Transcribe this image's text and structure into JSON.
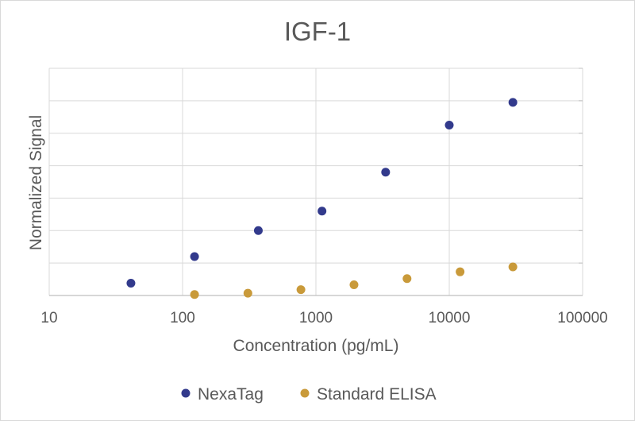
{
  "chart_data": {
    "type": "scatter",
    "title": "IGF-1",
    "xlabel": "Concentration (pg/mL)",
    "ylabel": "Normalized Signal",
    "x_scale": "log",
    "xlim": [
      10,
      100000
    ],
    "ylim": [
      0,
      7
    ],
    "x_tick_labels": [
      "10",
      "100",
      "1000",
      "10000",
      "100000"
    ],
    "y_tick_labels_shown": false,
    "grid": true,
    "legend_position": "bottom",
    "series": [
      {
        "name": "NexaTag",
        "color": "#323a8c",
        "x": [
          41,
          123,
          370,
          1111,
          3333,
          10000,
          30000
        ],
        "y": [
          0.38,
          1.2,
          2.0,
          2.6,
          3.8,
          5.25,
          5.95
        ]
      },
      {
        "name": "Standard ELISA",
        "color": "#c99a3a",
        "x": [
          123,
          309,
          772,
          1930,
          4823,
          12058,
          30000
        ],
        "y": [
          0.03,
          0.07,
          0.18,
          0.33,
          0.52,
          0.73,
          0.88
        ]
      }
    ]
  }
}
